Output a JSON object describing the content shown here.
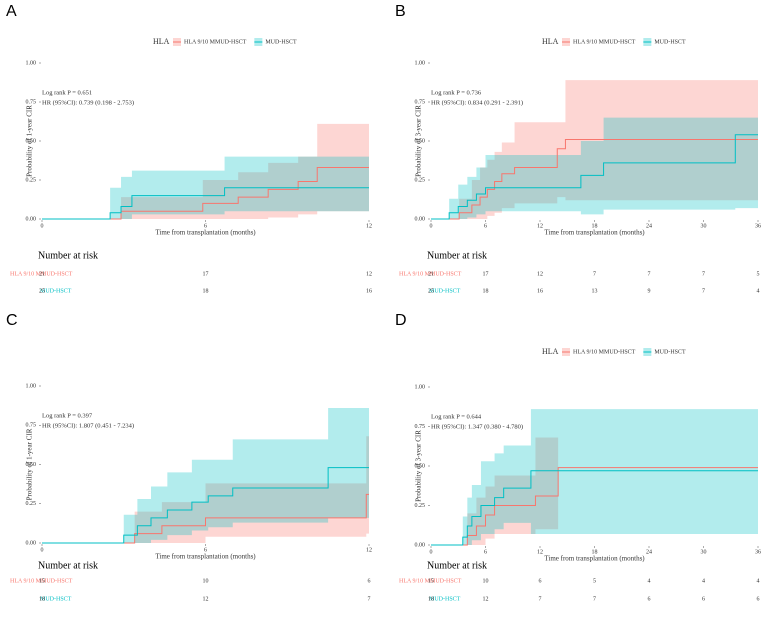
{
  "chart_data": [
    {
      "type": "step",
      "panel_label": "A",
      "legend": true,
      "legend_title": "HLA",
      "annotations": [
        "Log rank P = 0.651",
        "HR (95%CI): 0.739 (0.198 - 2.753)"
      ],
      "ylabel": "Probability of 1-year CIR",
      "xlabel": "Time from transplantation (months)",
      "xlim": [
        0,
        12
      ],
      "xticks": [
        0,
        6,
        12
      ],
      "ylim": [
        0,
        1
      ],
      "yticks": [
        {
          "value": 0,
          "label": "0.00"
        },
        {
          "value": 0.25,
          "label": "0.25"
        },
        {
          "value": 0.5,
          "label": "0.50"
        },
        {
          "value": 0.75,
          "label": "0.75"
        },
        {
          "value": 1,
          "label": "1.00"
        }
      ],
      "risk_table_title": "Number at risk",
      "series": [
        {
          "name": "HLA 9/10 MMUD-HSCT",
          "color": "#F8766D",
          "x": [
            0,
            2.9,
            5.9,
            7.2,
            8.3,
            9.4,
            10.1,
            12
          ],
          "values": [
            0,
            0.05,
            0.1,
            0.14,
            0.19,
            0.24,
            0.33,
            0.33
          ],
          "lower": [
            0,
            0,
            0,
            0,
            0.01,
            0.03,
            0.05,
            0.05
          ],
          "upper": [
            0,
            0.14,
            0.25,
            0.3,
            0.36,
            0.4,
            0.61,
            0.61
          ],
          "at_risk": [
            "21",
            "17",
            "12"
          ]
        },
        {
          "name": "MUD-HSCT",
          "color": "#00BFC4",
          "x": [
            0,
            2.5,
            2.9,
            3.3,
            6.7,
            12
          ],
          "values": [
            0,
            0.04,
            0.08,
            0.15,
            0.2,
            0.2
          ],
          "lower": [
            0,
            0,
            0,
            0.03,
            0.05,
            0.05
          ],
          "upper": [
            0,
            0.2,
            0.27,
            0.31,
            0.4,
            0.4
          ],
          "at_risk": [
            "25",
            "18",
            "16"
          ]
        }
      ]
    },
    {
      "type": "step",
      "panel_label": "B",
      "legend": true,
      "legend_title": "HLA",
      "annotations": [
        "Log rank P = 0.736",
        "HR (95%CI): 0.834 (0.291 - 2.391)"
      ],
      "ylabel": "Probability of 3-year CIR",
      "xlabel": "Time from transplantation (months)",
      "xlim": [
        0,
        36
      ],
      "xticks": [
        0,
        6,
        12,
        18,
        24,
        30,
        36
      ],
      "ylim": [
        0,
        1
      ],
      "yticks": [
        {
          "value": 0,
          "label": "0.00"
        },
        {
          "value": 0.25,
          "label": "0.25"
        },
        {
          "value": 0.5,
          "label": "0.50"
        },
        {
          "value": 0.75,
          "label": "0.75"
        },
        {
          "value": 1,
          "label": "1.00"
        }
      ],
      "risk_table_title": "Number at risk",
      "series": [
        {
          "name": "HLA 9/10 MMUD-HSCT",
          "color": "#F8766D",
          "x": [
            0,
            3.1,
            4.5,
            5.4,
            6.2,
            7,
            7.8,
            9.2,
            13.9,
            14.8,
            36
          ],
          "values": [
            0,
            0.04,
            0.09,
            0.14,
            0.19,
            0.24,
            0.29,
            0.33,
            0.45,
            0.51,
            0.51
          ],
          "lower": [
            0,
            0,
            0,
            0,
            0.02,
            0.04,
            0.07,
            0.1,
            0.14,
            0.12,
            0.12
          ],
          "upper": [
            0,
            0.13,
            0.25,
            0.33,
            0.38,
            0.43,
            0.49,
            0.62,
            0.62,
            0.89,
            0.89
          ],
          "at_risk": [
            "21",
            "17",
            "12",
            "7",
            "7",
            "7",
            "5"
          ]
        },
        {
          "name": "MUD-HSCT",
          "color": "#00BFC4",
          "x": [
            0,
            2,
            3,
            4,
            5,
            6,
            16.5,
            19,
            33.5,
            36
          ],
          "values": [
            0,
            0.04,
            0.08,
            0.12,
            0.16,
            0.2,
            0.28,
            0.36,
            0.54,
            0.54
          ],
          "lower": [
            0,
            0,
            0,
            0.01,
            0.03,
            0.05,
            0.03,
            0.06,
            0.07,
            0.07
          ],
          "upper": [
            0,
            0.13,
            0.22,
            0.27,
            0.33,
            0.41,
            0.5,
            0.65,
            0.65,
            0.65
          ],
          "at_risk": [
            "25",
            "18",
            "16",
            "13",
            "9",
            "7",
            "4"
          ]
        }
      ]
    },
    {
      "type": "step",
      "panel_label": "C",
      "legend": false,
      "annotations": [
        "Log rank P = 0.397",
        "HR (95%CI): 1.807 (0.451 - 7.234)"
      ],
      "ylabel": "Probability of 1-year CIR",
      "xlabel": "Time from transplantation (months)",
      "xlim": [
        0,
        12
      ],
      "xticks": [
        0,
        6,
        12
      ],
      "ylim": [
        0,
        1
      ],
      "yticks": [
        {
          "value": 0,
          "label": "0.00"
        },
        {
          "value": 0.25,
          "label": "0.25"
        },
        {
          "value": 0.5,
          "label": "0.50"
        },
        {
          "value": 0.75,
          "label": "0.75"
        },
        {
          "value": 1,
          "label": "1.00"
        }
      ],
      "risk_table_title": "Number at risk",
      "series": [
        {
          "name": "HLA 9/10 MMUD-HSCT",
          "color": "#F8766D",
          "x": [
            0,
            3.4,
            4.4,
            6,
            11.9,
            12
          ],
          "values": [
            0,
            0.06,
            0.11,
            0.16,
            0.31,
            0.31
          ],
          "lower": [
            0,
            0,
            0,
            0.04,
            0.06,
            0.06
          ],
          "upper": [
            0,
            0.2,
            0.26,
            0.38,
            0.68,
            0.68
          ],
          "at_risk": [
            "15",
            "10",
            "6"
          ]
        },
        {
          "name": "MUD-HSCT",
          "color": "#00BFC4",
          "x": [
            0,
            3,
            3.5,
            4,
            4.6,
            5.5,
            6.1,
            7,
            10.5,
            12
          ],
          "values": [
            0,
            0.05,
            0.11,
            0.16,
            0.21,
            0.26,
            0.3,
            0.35,
            0.48,
            0.48
          ],
          "lower": [
            0,
            0,
            0,
            0.02,
            0.05,
            0.08,
            0.1,
            0.13,
            0.16,
            0.16
          ],
          "upper": [
            0,
            0.18,
            0.28,
            0.36,
            0.45,
            0.53,
            0.53,
            0.66,
            0.86,
            0.86
          ],
          "at_risk": [
            "18",
            "12",
            "7"
          ]
        }
      ]
    },
    {
      "type": "step",
      "panel_label": "D",
      "legend": true,
      "legend_title": "HLA",
      "annotations": [
        "Log rank P = 0.644",
        "HR (95%CI): 1.347 (0.380 - 4.780)"
      ],
      "ylabel": "Probability of 3-year CIR",
      "xlabel": "Time from transplantation (months)",
      "xlim": [
        0,
        36
      ],
      "xticks": [
        0,
        6,
        12,
        18,
        24,
        30,
        36
      ],
      "ylim": [
        0,
        1
      ],
      "yticks": [
        {
          "value": 0,
          "label": "0.00"
        },
        {
          "value": 0.25,
          "label": "0.25"
        },
        {
          "value": 0.5,
          "label": "0.50"
        },
        {
          "value": 0.75,
          "label": "0.75"
        },
        {
          "value": 1,
          "label": "1.00"
        }
      ],
      "risk_table_title": "Number at risk",
      "series": [
        {
          "name": "HLA 9/10 MMUD-HSCT",
          "color": "#F8766D",
          "x": [
            0,
            4,
            5,
            6,
            7,
            11.5,
            14,
            36
          ],
          "values": [
            0,
            0.06,
            0.12,
            0.19,
            0.25,
            0.31,
            0.49,
            0.49
          ],
          "lower": [
            0,
            0,
            0,
            0.04,
            0.07,
            0.1,
            0.49,
            0.49
          ],
          "upper": [
            0,
            0.2,
            0.3,
            0.37,
            0.44,
            0.68,
            0.49,
            0.49
          ],
          "at_risk": [
            "15",
            "10",
            "6",
            "5",
            "4",
            "4",
            "4"
          ]
        },
        {
          "name": "MUD-HSCT",
          "color": "#00BFC4",
          "x": [
            0,
            3.5,
            4,
            4.5,
            5.5,
            7,
            8,
            11,
            36
          ],
          "values": [
            0,
            0.05,
            0.12,
            0.18,
            0.25,
            0.3,
            0.36,
            0.47,
            0.47
          ],
          "lower": [
            0,
            0,
            0,
            0.03,
            0.07,
            0.1,
            0.14,
            0.07,
            0.07
          ],
          "upper": [
            0,
            0.18,
            0.3,
            0.38,
            0.53,
            0.58,
            0.63,
            0.86,
            0.86
          ],
          "at_risk": [
            "18",
            "12",
            "7",
            "7",
            "6",
            "6",
            "6"
          ]
        }
      ]
    }
  ]
}
